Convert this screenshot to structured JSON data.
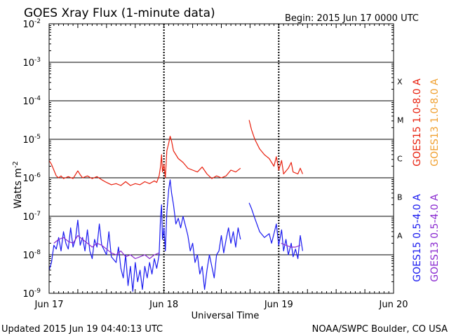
{
  "header": {
    "title": "GOES Xray Flux (1-minute data)",
    "begin": "Begin:  2015 Jun 17 0000 UTC"
  },
  "footer": {
    "updated": "Updated 2015 Jun 19 04:40:13 UTC",
    "credit": "NOAA/SWPC Boulder, CO USA"
  },
  "chart_data": {
    "type": "line",
    "title": "GOES Xray Flux (1-minute data)",
    "xlabel": "Universal Time",
    "ylabel": "Watts m",
    "ylabel_superscript": "-2",
    "yscale": "log",
    "xlim": [
      0,
      72
    ],
    "ylim_exponent": [
      -9,
      -2
    ],
    "x_ticks": [
      {
        "x": 0,
        "label": "Jun 17"
      },
      {
        "x": 24,
        "label": "Jun 18"
      },
      {
        "x": 48,
        "label": "Jun 19"
      },
      {
        "x": 72,
        "label": "Jun 20"
      }
    ],
    "y_ticks": [
      {
        "exp": -9,
        "label": "10",
        "sup": "-9"
      },
      {
        "exp": -8,
        "label": "10",
        "sup": "-8"
      },
      {
        "exp": -7,
        "label": "10",
        "sup": "-7"
      },
      {
        "exp": -6,
        "label": "10",
        "sup": "-6"
      },
      {
        "exp": -5,
        "label": "10",
        "sup": "-5"
      },
      {
        "exp": -4,
        "label": "10",
        "sup": "-4"
      },
      {
        "exp": -3,
        "label": "10",
        "sup": "-3"
      },
      {
        "exp": -2,
        "label": "10",
        "sup": "-2"
      }
    ],
    "flare_classes": [
      {
        "label": "A",
        "exp": -7.5
      },
      {
        "label": "B",
        "exp": -6.5
      },
      {
        "label": "C",
        "exp": -5.5
      },
      {
        "label": "M",
        "exp": -4.5
      },
      {
        "label": "X",
        "exp": -3.5
      }
    ],
    "legend": [
      {
        "name": "GOES15 1.0-8.0 A",
        "color": "#e8200e"
      },
      {
        "name": "GOES13 1.0-8.0 A",
        "color": "#f0a030"
      },
      {
        "name": "GOES15 0.5-4.0 A",
        "color": "#1a1af0"
      },
      {
        "name": "GOES13 0.5-4.0 A",
        "color": "#8a2ad0"
      }
    ],
    "series": [
      {
        "name": "GOES15 1.0-8.0 A",
        "color": "#e8200e",
        "segments": [
          [
            [
              0,
              -5.55
            ],
            [
              0.5,
              -5.65
            ],
            [
              1,
              -5.8
            ],
            [
              1.5,
              -5.95
            ],
            [
              2,
              -6.0
            ],
            [
              2.5,
              -5.95
            ],
            [
              3,
              -6.02
            ],
            [
              4,
              -5.97
            ],
            [
              5,
              -6.02
            ],
            [
              6,
              -5.82
            ],
            [
              6.5,
              -5.92
            ],
            [
              7,
              -6.0
            ],
            [
              8,
              -5.95
            ],
            [
              9,
              -6.02
            ],
            [
              10,
              -5.97
            ],
            [
              11,
              -6.05
            ],
            [
              12,
              -6.12
            ],
            [
              13,
              -6.18
            ],
            [
              14,
              -6.15
            ],
            [
              15,
              -6.2
            ],
            [
              16,
              -6.1
            ],
            [
              17,
              -6.2
            ],
            [
              18,
              -6.15
            ],
            [
              19,
              -6.18
            ],
            [
              20,
              -6.1
            ],
            [
              21,
              -6.15
            ],
            [
              22,
              -6.08
            ],
            [
              22.5,
              -6.12
            ],
            [
              23,
              -5.95
            ],
            [
              23.3,
              -5.7
            ],
            [
              23.5,
              -5.4
            ],
            [
              23.7,
              -5.85
            ],
            [
              24,
              -5.65
            ],
            [
              24.3,
              -6.0
            ],
            [
              24.6,
              -5.3
            ],
            [
              25,
              -5.1
            ],
            [
              25.3,
              -4.92
            ],
            [
              25.6,
              -5.05
            ],
            [
              26,
              -5.3
            ],
            [
              27,
              -5.5
            ],
            [
              28,
              -5.6
            ],
            [
              29,
              -5.75
            ],
            [
              30,
              -5.8
            ],
            [
              31,
              -5.85
            ],
            [
              32,
              -5.72
            ],
            [
              33,
              -5.9
            ],
            [
              34,
              -6.02
            ],
            [
              35,
              -5.95
            ],
            [
              36,
              -6.0
            ],
            [
              37,
              -5.95
            ],
            [
              38,
              -5.8
            ],
            [
              39,
              -5.85
            ],
            [
              40,
              -5.75
            ]
          ],
          [
            [
              41.8,
              -4.5
            ],
            [
              42.3,
              -4.75
            ],
            [
              43,
              -5.0
            ],
            [
              44,
              -5.25
            ],
            [
              45,
              -5.4
            ],
            [
              46,
              -5.5
            ],
            [
              47,
              -5.7
            ],
            [
              47.5,
              -5.45
            ],
            [
              48,
              -5.8
            ],
            [
              48.6,
              -5.55
            ],
            [
              49,
              -5.9
            ],
            [
              50,
              -5.75
            ],
            [
              50.6,
              -5.6
            ],
            [
              51,
              -5.85
            ],
            [
              52,
              -5.9
            ],
            [
              52.5,
              -5.75
            ],
            [
              53,
              -5.9
            ]
          ]
        ]
      },
      {
        "name": "GOES15 0.5-4.0 A",
        "color": "#1a1af0",
        "segments": [
          [
            [
              0,
              -8.4
            ],
            [
              0.5,
              -8.2
            ],
            [
              1,
              -7.75
            ],
            [
              1.5,
              -7.85
            ],
            [
              2,
              -7.55
            ],
            [
              2.5,
              -7.9
            ],
            [
              3,
              -7.4
            ],
            [
              3.5,
              -7.7
            ],
            [
              4,
              -7.85
            ],
            [
              4.5,
              -7.3
            ],
            [
              5,
              -7.8
            ],
            [
              5.5,
              -7.6
            ],
            [
              6,
              -7.1
            ],
            [
              6.5,
              -7.75
            ],
            [
              7,
              -7.55
            ],
            [
              7.5,
              -7.9
            ],
            [
              8,
              -7.35
            ],
            [
              8.5,
              -7.9
            ],
            [
              9,
              -8.1
            ],
            [
              9.5,
              -7.6
            ],
            [
              10,
              -7.8
            ],
            [
              10.5,
              -7.2
            ],
            [
              11,
              -7.75
            ],
            [
              12,
              -8.0
            ],
            [
              12.5,
              -7.4
            ],
            [
              13,
              -8.05
            ],
            [
              14,
              -8.2
            ],
            [
              14.5,
              -7.8
            ],
            [
              15,
              -8.35
            ],
            [
              15.5,
              -8.6
            ],
            [
              16,
              -8.0
            ],
            [
              16.5,
              -8.8
            ],
            [
              17,
              -8.3
            ],
            [
              17.5,
              -8.95
            ],
            [
              18,
              -8.2
            ],
            [
              18.5,
              -8.7
            ],
            [
              19,
              -8.4
            ],
            [
              19.5,
              -8.9
            ],
            [
              20,
              -8.3
            ],
            [
              20.5,
              -8.6
            ],
            [
              21,
              -8.2
            ],
            [
              21.5,
              -8.5
            ],
            [
              22,
              -8.1
            ],
            [
              22.5,
              -8.35
            ],
            [
              23,
              -8.0
            ],
            [
              23.3,
              -7.0
            ],
            [
              23.5,
              -6.7
            ],
            [
              23.7,
              -7.6
            ],
            [
              24,
              -7.3
            ],
            [
              24.3,
              -7.9
            ],
            [
              24.6,
              -6.9
            ],
            [
              25,
              -6.3
            ],
            [
              25.3,
              -6.05
            ],
            [
              25.6,
              -6.4
            ],
            [
              26,
              -6.7
            ],
            [
              26.5,
              -7.2
            ],
            [
              27,
              -7.05
            ],
            [
              27.5,
              -7.3
            ],
            [
              28,
              -7.0
            ],
            [
              28.5,
              -7.25
            ],
            [
              29,
              -7.5
            ],
            [
              29.5,
              -7.9
            ],
            [
              30,
              -7.7
            ],
            [
              30.5,
              -8.2
            ],
            [
              31,
              -8.0
            ],
            [
              31.5,
              -8.5
            ],
            [
              32,
              -8.3
            ],
            [
              32.5,
              -8.9
            ],
            [
              33,
              -8.4
            ],
            [
              33.5,
              -8.0
            ],
            [
              34,
              -8.3
            ],
            [
              34.5,
              -8.6
            ],
            [
              35,
              -8.0
            ],
            [
              35.5,
              -7.9
            ],
            [
              36,
              -7.5
            ],
            [
              36.5,
              -7.95
            ],
            [
              37,
              -7.6
            ],
            [
              37.5,
              -7.3
            ],
            [
              38,
              -7.7
            ],
            [
              38.5,
              -7.4
            ],
            [
              39,
              -7.8
            ],
            [
              39.5,
              -7.3
            ],
            [
              40,
              -7.6
            ]
          ],
          [
            [
              41.8,
              -6.65
            ],
            [
              42.3,
              -6.8
            ],
            [
              43,
              -7.05
            ],
            [
              44,
              -7.4
            ],
            [
              45,
              -7.55
            ],
            [
              46,
              -7.45
            ],
            [
              46.5,
              -7.7
            ],
            [
              47,
              -7.45
            ],
            [
              47.5,
              -7.2
            ],
            [
              48,
              -7.75
            ],
            [
              48.6,
              -7.35
            ],
            [
              49,
              -7.9
            ],
            [
              49.5,
              -7.6
            ],
            [
              50,
              -8.0
            ],
            [
              50.6,
              -7.7
            ],
            [
              51,
              -8.05
            ],
            [
              51.5,
              -7.85
            ],
            [
              52,
              -8.1
            ],
            [
              52.5,
              -7.5
            ],
            [
              53,
              -7.9
            ]
          ]
        ]
      },
      {
        "name": "GOES13 0.5-4.0 A",
        "color": "#8a2ad0",
        "segments": [
          [
            [
              1,
              -7.7
            ],
            [
              2,
              -7.6
            ],
            [
              3,
              -7.55
            ],
            [
              4,
              -7.65
            ],
            [
              5,
              -7.7
            ],
            [
              6,
              -7.5
            ],
            [
              7,
              -7.6
            ],
            [
              8,
              -7.7
            ],
            [
              9,
              -7.8
            ],
            [
              10,
              -7.7
            ],
            [
              11,
              -7.75
            ],
            [
              12,
              -7.85
            ],
            [
              13,
              -7.95
            ],
            [
              14,
              -8.0
            ],
            [
              15,
              -7.9
            ],
            [
              16,
              -8.05
            ],
            [
              17,
              -8.0
            ],
            [
              18,
              -8.1
            ],
            [
              19,
              -8.05
            ],
            [
              20,
              -8.0
            ],
            [
              21,
              -8.1
            ],
            [
              22,
              -8.0
            ],
            [
              23,
              -7.95
            ]
          ],
          [
            [
              48.5,
              -7.7
            ],
            [
              49.5,
              -7.75
            ],
            [
              50.5,
              -7.8
            ],
            [
              51.5,
              -7.8
            ],
            [
              52.5,
              -7.75
            ]
          ]
        ]
      }
    ]
  }
}
